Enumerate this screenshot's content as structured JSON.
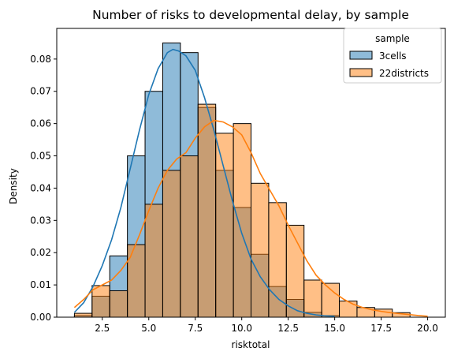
{
  "chart_data": {
    "type": "histogram",
    "title": "Number of risks to developmental delay, by sample",
    "xlabel": "risktotal",
    "ylabel": "Density",
    "xlim": [
      0.05,
      20.95
    ],
    "ylim": [
      0,
      0.0895
    ],
    "xticks": [
      2.5,
      5.0,
      7.5,
      10.0,
      12.5,
      15.0,
      17.5,
      20.0
    ],
    "xtick_labels": [
      "2.5",
      "5.0",
      "7.5",
      "10.0",
      "12.5",
      "15.0",
      "17.5",
      "20.0"
    ],
    "yticks": [
      0,
      0.01,
      0.02,
      0.03,
      0.04,
      0.05,
      0.06,
      0.07,
      0.08
    ],
    "ytick_labels": [
      "0.00",
      "0.01",
      "0.02",
      "0.03",
      "0.04",
      "0.05",
      "0.06",
      "0.07",
      "0.08"
    ],
    "bin_edges": [
      1.0,
      1.95,
      2.9,
      3.85,
      4.8,
      5.75,
      6.7,
      7.65,
      8.6,
      9.55,
      10.5,
      11.45,
      12.4,
      13.35,
      14.3,
      15.25,
      16.2,
      17.15,
      18.1,
      19.05,
      20.0
    ],
    "legend_title": "sample",
    "legend_position": "upper right",
    "series": [
      {
        "name": "3cells",
        "color": "#1f77b4",
        "values": [
          0.0005,
          0.0065,
          0.019,
          0.05,
          0.07,
          0.085,
          0.082,
          0.065,
          0.0455,
          0.034,
          0.0195,
          0.0095,
          0.0055,
          0.0015,
          0.0005,
          0.0,
          0.0,
          0.0,
          0.0,
          0.0
        ],
        "kde_x": [
          1.0,
          1.5,
          2.0,
          2.5,
          3.0,
          3.5,
          4.0,
          4.5,
          5.0,
          5.5,
          6.0,
          6.3,
          6.6,
          7.0,
          7.5,
          8.0,
          8.5,
          9.0,
          9.5,
          10.0,
          10.5,
          11.0,
          11.5,
          12.0,
          12.5,
          13.0,
          13.5,
          14.0,
          14.5,
          15.0
        ],
        "kde_y": [
          0.0015,
          0.0045,
          0.0095,
          0.016,
          0.024,
          0.034,
          0.046,
          0.058,
          0.069,
          0.077,
          0.082,
          0.083,
          0.0825,
          0.081,
          0.0765,
          0.068,
          0.058,
          0.047,
          0.036,
          0.026,
          0.018,
          0.0125,
          0.0085,
          0.0055,
          0.0035,
          0.002,
          0.0012,
          0.0007,
          0.0004,
          0.0003
        ]
      },
      {
        "name": "22districts",
        "color": "#ff7f0e",
        "values": [
          0.0012,
          0.0098,
          0.0082,
          0.0225,
          0.035,
          0.0455,
          0.05,
          0.066,
          0.057,
          0.06,
          0.0415,
          0.0355,
          0.0285,
          0.0115,
          0.0105,
          0.005,
          0.003,
          0.0025,
          0.0014,
          0.0
        ],
        "kde_x": [
          1.0,
          1.5,
          2.0,
          2.5,
          3.0,
          3.5,
          4.0,
          4.5,
          5.0,
          5.5,
          6.0,
          6.5,
          7.0,
          7.5,
          8.0,
          8.5,
          9.0,
          9.5,
          10.0,
          10.5,
          11.0,
          11.5,
          12.0,
          12.5,
          13.0,
          13.5,
          14.0,
          14.5,
          15.0,
          15.5,
          16.0,
          16.5,
          17.0,
          17.5,
          18.0,
          18.5,
          19.0,
          19.5,
          20.0
        ],
        "kde_y": [
          0.003,
          0.0055,
          0.0085,
          0.01,
          0.0115,
          0.0145,
          0.0185,
          0.0255,
          0.033,
          0.04,
          0.0455,
          0.049,
          0.051,
          0.0555,
          0.059,
          0.061,
          0.0605,
          0.059,
          0.0565,
          0.051,
          0.0445,
          0.0395,
          0.0345,
          0.0285,
          0.023,
          0.0175,
          0.013,
          0.01,
          0.0075,
          0.0055,
          0.004,
          0.003,
          0.0023,
          0.0018,
          0.0014,
          0.0011,
          0.0008,
          0.0005,
          0.0003
        ]
      }
    ]
  }
}
